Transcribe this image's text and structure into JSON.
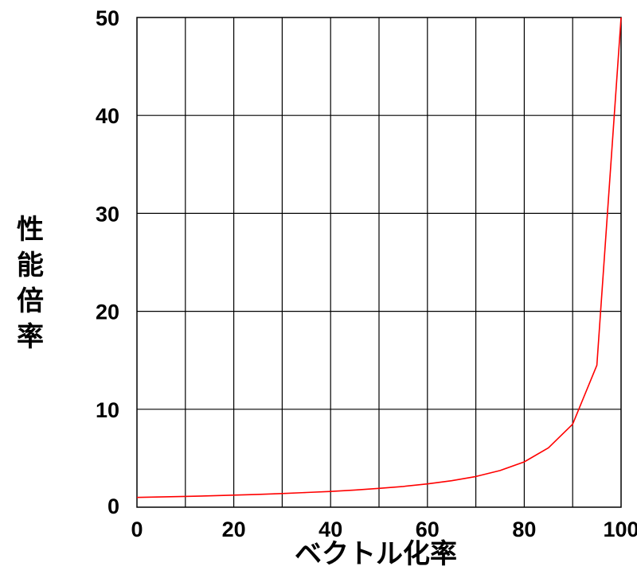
{
  "chart_data": {
    "type": "line",
    "title": "",
    "xlabel": "ベクトル化率",
    "ylabel": "性能倍率",
    "xlim": [
      0,
      100
    ],
    "ylim": [
      0,
      50
    ],
    "xticks": [
      "0",
      "20",
      "40",
      "60",
      "80",
      "100"
    ],
    "yticks": [
      "0",
      "10",
      "20",
      "30",
      "40",
      "50"
    ],
    "grid": true,
    "line_color": "#ff0000",
    "series": [
      {
        "x": [
          0,
          5,
          10,
          15,
          20,
          25,
          30,
          35,
          40,
          45,
          50,
          55,
          60,
          65,
          70,
          75,
          80,
          85,
          90,
          95,
          100
        ],
        "y": [
          1.0,
          1.05,
          1.1,
          1.16,
          1.23,
          1.31,
          1.4,
          1.5,
          1.61,
          1.75,
          1.92,
          2.12,
          2.38,
          2.7,
          3.13,
          3.74,
          4.63,
          6.06,
          8.47,
          14.5,
          50.0
        ]
      }
    ]
  }
}
